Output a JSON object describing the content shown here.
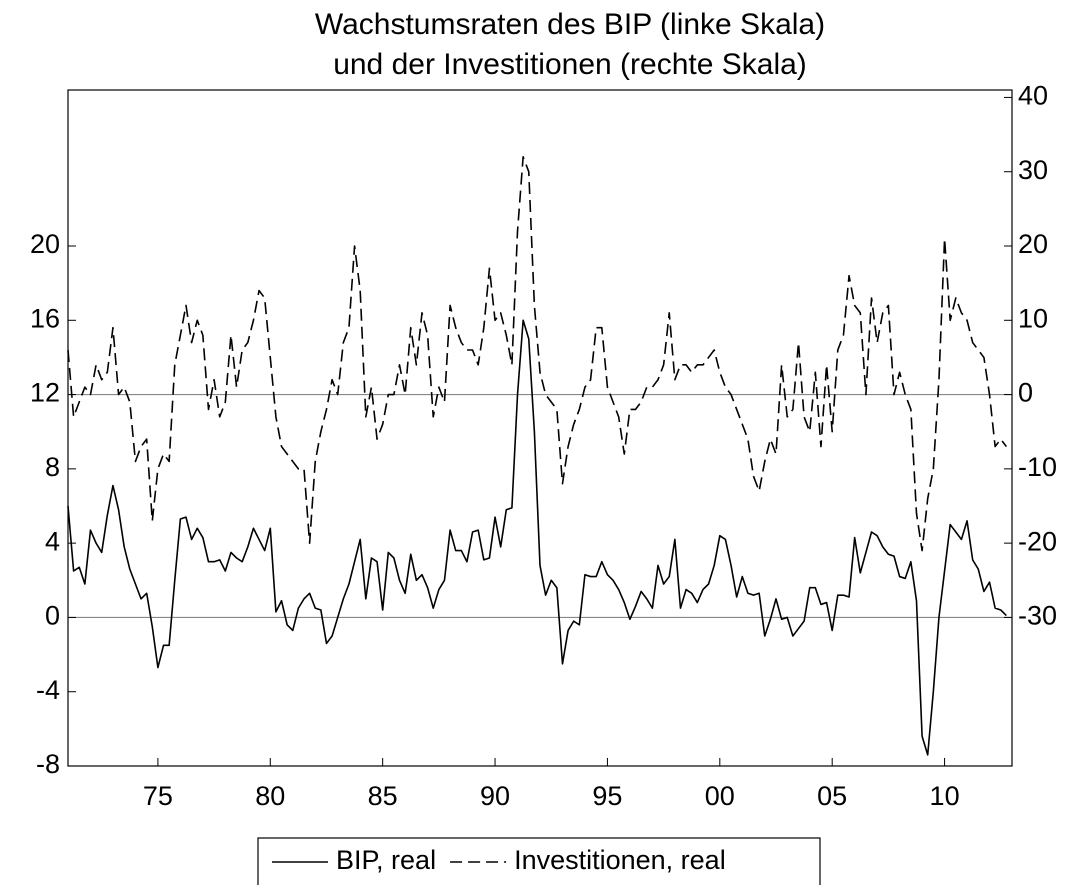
{
  "chart_data": {
    "type": "line",
    "title": [
      "Wachstumsraten des BIP (linke Skala)",
      "und der Investitionen (rechte Skala)"
    ],
    "x": [
      1971,
      1971.25,
      1971.5,
      1971.75,
      1972,
      1972.25,
      1972.5,
      1972.75,
      1973,
      1973.25,
      1973.5,
      1973.75,
      1974,
      1974.25,
      1974.5,
      1974.75,
      1975,
      1975.25,
      1975.5,
      1975.75,
      1976,
      1976.25,
      1976.5,
      1976.75,
      1977,
      1977.25,
      1977.5,
      1977.75,
      1978,
      1978.25,
      1978.5,
      1978.75,
      1979,
      1979.25,
      1979.5,
      1979.75,
      1980,
      1980.25,
      1980.5,
      1980.75,
      1981,
      1981.25,
      1981.5,
      1981.75,
      1982,
      1982.25,
      1982.5,
      1982.75,
      1983,
      1983.25,
      1983.5,
      1983.75,
      1984,
      1984.25,
      1984.5,
      1984.75,
      1985,
      1985.25,
      1985.5,
      1985.75,
      1986,
      1986.25,
      1986.5,
      1986.75,
      1987,
      1987.25,
      1987.5,
      1987.75,
      1988,
      1988.25,
      1988.5,
      1988.75,
      1989,
      1989.25,
      1989.5,
      1989.75,
      1990,
      1990.25,
      1990.5,
      1990.75,
      1991,
      1991.25,
      1991.5,
      1991.75,
      1992,
      1992.25,
      1992.5,
      1992.75,
      1993,
      1993.25,
      1993.5,
      1993.75,
      1994,
      1994.25,
      1994.5,
      1994.75,
      1995,
      1995.25,
      1995.5,
      1995.75,
      1996,
      1996.25,
      1996.5,
      1996.75,
      1997,
      1997.25,
      1997.5,
      1997.75,
      1998,
      1998.25,
      1998.5,
      1998.75,
      1999,
      1999.25,
      1999.5,
      1999.75,
      2000,
      2000.25,
      2000.5,
      2000.75,
      2001,
      2001.25,
      2001.5,
      2001.75,
      2002,
      2002.25,
      2002.5,
      2002.75,
      2003,
      2003.25,
      2003.5,
      2003.75,
      2004,
      2004.25,
      2004.5,
      2004.75,
      2005,
      2005.25,
      2005.5,
      2005.75,
      2006,
      2006.25,
      2006.5,
      2006.75,
      2007,
      2007.25,
      2007.5,
      2007.75,
      2008,
      2008.25,
      2008.5,
      2008.75,
      2009,
      2009.25,
      2009.5,
      2009.75,
      2010,
      2010.25,
      2010.5,
      2010.75,
      2011,
      2011.25,
      2011.5,
      2011.75,
      2012,
      2012.25,
      2012.5,
      2012.75
    ],
    "series": [
      {
        "name": "BIP, real",
        "color": "#000000",
        "dash": "solid",
        "axis": "y",
        "values": [
          6.0,
          2.5,
          2.7,
          1.8,
          4.7,
          4.0,
          3.5,
          5.5,
          7.1,
          5.8,
          3.8,
          2.6,
          1.8,
          1.0,
          1.3,
          -0.5,
          -2.7,
          -1.5,
          -1.5,
          2.0,
          5.3,
          5.4,
          4.2,
          4.8,
          4.3,
          3.0,
          3.0,
          3.1,
          2.5,
          3.5,
          3.2,
          3.0,
          3.8,
          4.8,
          4.2,
          3.6,
          4.8,
          0.3,
          0.9,
          -0.4,
          -0.7,
          0.5,
          1.0,
          1.3,
          0.5,
          0.4,
          -1.4,
          -1.0,
          0.0,
          1.0,
          1.8,
          3.0,
          4.2,
          1.0,
          3.2,
          3.0,
          0.4,
          3.5,
          3.2,
          2.0,
          1.3,
          3.4,
          2.0,
          2.3,
          1.6,
          0.5,
          1.5,
          2.0,
          4.7,
          3.6,
          3.6,
          3.0,
          4.6,
          4.7,
          3.1,
          3.2,
          5.4,
          3.8,
          5.8,
          5.9,
          12.0,
          16.0,
          15.0,
          10.0,
          2.8,
          1.2,
          2.0,
          1.6,
          -2.5,
          -0.7,
          -0.2,
          -0.4,
          2.3,
          2.2,
          2.2,
          3.0,
          2.3,
          2.0,
          1.5,
          0.8,
          -0.1,
          0.6,
          1.4,
          1.0,
          0.5,
          2.8,
          1.8,
          2.2,
          4.2,
          0.5,
          1.5,
          1.3,
          0.8,
          1.5,
          1.8,
          2.8,
          4.4,
          4.2,
          2.8,
          1.1,
          2.2,
          1.3,
          1.2,
          1.3,
          -1.0,
          -0.1,
          1.0,
          -0.1,
          0.0,
          -1.0,
          -0.6,
          -0.2,
          1.6,
          1.6,
          0.7,
          0.8,
          -0.7,
          1.2,
          1.2,
          1.1,
          4.3,
          2.4,
          3.5,
          4.6,
          4.4,
          3.8,
          3.4,
          3.3,
          2.2,
          2.1,
          3.0,
          0.9,
          -6.4,
          -7.4,
          -4.0,
          0.0,
          2.5,
          5.0,
          4.6,
          4.2,
          5.2,
          3.1,
          2.6,
          1.4,
          1.9,
          0.5,
          0.4,
          0.1
        ]
      },
      {
        "name": "Investitionen, real",
        "color": "#000000",
        "dash": "dashed",
        "axis": "y2",
        "values": [
          6,
          -3,
          -1,
          1,
          0,
          4,
          2,
          3,
          9,
          0,
          1,
          -1,
          -9,
          -7,
          -6,
          -17,
          -10,
          -8,
          -9,
          4,
          8,
          12,
          7,
          10,
          8,
          -2,
          2,
          -3,
          -1,
          8,
          1,
          6,
          7,
          10,
          14,
          13,
          5,
          -3,
          -7,
          -8,
          -9,
          -10,
          -10,
          -20,
          -9,
          -5,
          -2,
          2,
          0,
          7,
          9,
          20,
          14,
          -3,
          1,
          -6,
          -4,
          0,
          0,
          4,
          0,
          9,
          4,
          11,
          8,
          -3,
          1,
          -1,
          12,
          9,
          7,
          6,
          6,
          4,
          9,
          17,
          10,
          11,
          8,
          4,
          22,
          32,
          30,
          12,
          3,
          0,
          -1,
          -2,
          -12,
          -7,
          -4,
          -2,
          1,
          2,
          9,
          9,
          1,
          -1,
          -3,
          -8,
          -2,
          -2,
          -1,
          1,
          1,
          2,
          4,
          11,
          2,
          4,
          4,
          3,
          4,
          4,
          5,
          6,
          3,
          1,
          0,
          -2,
          -4,
          -6,
          -11,
          -13,
          -9,
          -6,
          -8,
          4,
          -3,
          -2,
          7,
          -3,
          -5,
          3,
          -7,
          4,
          -5,
          6,
          8,
          16,
          12,
          11,
          0,
          13,
          7,
          11,
          12,
          0,
          3,
          0,
          -2,
          -16,
          -21,
          -14,
          -10,
          2,
          21,
          10,
          13,
          11,
          10,
          7,
          6,
          5,
          0,
          -7,
          -6,
          -7
        ]
      }
    ],
    "xlim": [
      1971,
      2013
    ],
    "xticks": [
      {
        "value": 1975,
        "label": "75"
      },
      {
        "value": 1980,
        "label": "80"
      },
      {
        "value": 1985,
        "label": "85"
      },
      {
        "value": 1990,
        "label": "90"
      },
      {
        "value": 1995,
        "label": "95"
      },
      {
        "value": 2000,
        "label": "00"
      },
      {
        "value": 2005,
        "label": "05"
      },
      {
        "value": 2010,
        "label": "10"
      }
    ],
    "ylim": [
      -8,
      28.4
    ],
    "yticks": [
      -8,
      -4,
      0,
      4,
      8,
      12,
      16,
      20
    ],
    "y2lim": [
      -50,
      41
    ],
    "y2ticks": [
      -30,
      -20,
      -10,
      0,
      10,
      20,
      30,
      40
    ],
    "legend": "bottom"
  }
}
